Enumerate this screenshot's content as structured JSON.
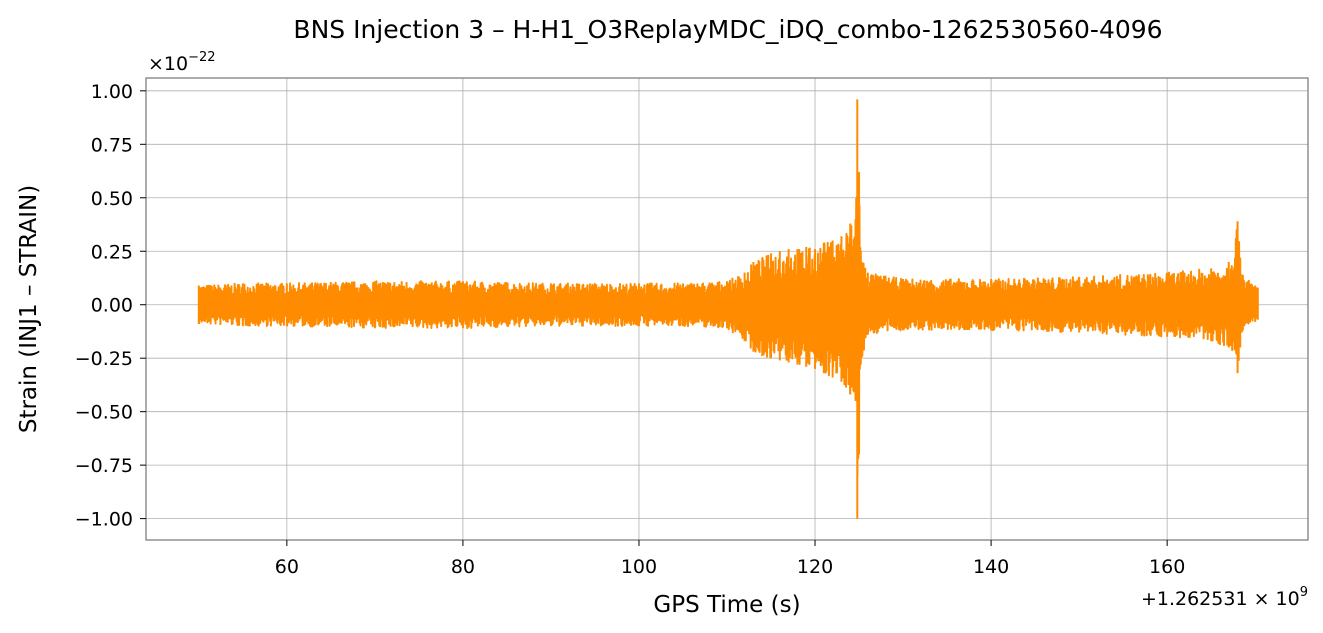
{
  "chart_data": {
    "type": "line",
    "title": "BNS Injection 3 – H-H1_O3ReplayMDC_iDQ_combo-1262530560-4096",
    "xlabel": "GPS Time (s)",
    "ylabel": "Strain (INJ1 – STRAIN)",
    "x_offset_text": "+1.262531 × 10",
    "x_offset_exponent": "9",
    "y_scale_text": "×10",
    "y_scale_exponent": "−22",
    "xlim": [
      44,
      176
    ],
    "ylim": [
      -1.1,
      1.06
    ],
    "grid": true,
    "x_ticks": [
      {
        "value": 60,
        "label": "60"
      },
      {
        "value": 80,
        "label": "80"
      },
      {
        "value": 100,
        "label": "100"
      },
      {
        "value": 120,
        "label": "120"
      },
      {
        "value": 140,
        "label": "140"
      },
      {
        "value": 160,
        "label": "160"
      }
    ],
    "y_ticks": [
      {
        "value": 1.0,
        "label": "1.00"
      },
      {
        "value": 0.75,
        "label": "0.75"
      },
      {
        "value": 0.5,
        "label": "0.50"
      },
      {
        "value": 0.25,
        "label": "0.25"
      },
      {
        "value": 0.0,
        "label": "0.00"
      },
      {
        "value": -0.25,
        "label": "−0.25"
      },
      {
        "value": -0.5,
        "label": "−0.50"
      },
      {
        "value": -0.75,
        "label": "−0.75"
      },
      {
        "value": -1.0,
        "label": "−1.00"
      }
    ],
    "series": [
      {
        "color": "#ff8c00",
        "x_range": [
          50,
          170.3
        ],
        "envelope": {
          "x": [
            50,
            55,
            60,
            70,
            80,
            90,
            100,
            105,
            110,
            112,
            113,
            114,
            115,
            116,
            117,
            118,
            119,
            120,
            121,
            122,
            123,
            124,
            124.6,
            124.8,
            125.0,
            125.2,
            126,
            130,
            140,
            150,
            160,
            165,
            167,
            168,
            168.3,
            168.6,
            170,
            170.3
          ],
          "upper": [
            0.09,
            0.1,
            0.1,
            0.11,
            0.11,
            0.1,
            0.1,
            0.1,
            0.11,
            0.15,
            0.2,
            0.22,
            0.24,
            0.25,
            0.26,
            0.26,
            0.27,
            0.26,
            0.29,
            0.3,
            0.32,
            0.38,
            0.4,
            0.96,
            0.62,
            0.25,
            0.15,
            0.12,
            0.12,
            0.13,
            0.15,
            0.17,
            0.2,
            0.39,
            0.22,
            0.14,
            0.09,
            0.08
          ],
          "lower": [
            -0.09,
            -0.1,
            -0.1,
            -0.11,
            -0.11,
            -0.1,
            -0.1,
            -0.1,
            -0.11,
            -0.17,
            -0.22,
            -0.24,
            -0.25,
            -0.26,
            -0.27,
            -0.28,
            -0.29,
            -0.3,
            -0.32,
            -0.34,
            -0.36,
            -0.42,
            -0.45,
            -1.0,
            -0.7,
            -0.28,
            -0.14,
            -0.12,
            -0.12,
            -0.13,
            -0.15,
            -0.17,
            -0.2,
            -0.32,
            -0.2,
            -0.12,
            -0.08,
            -0.07
          ]
        }
      }
    ]
  }
}
